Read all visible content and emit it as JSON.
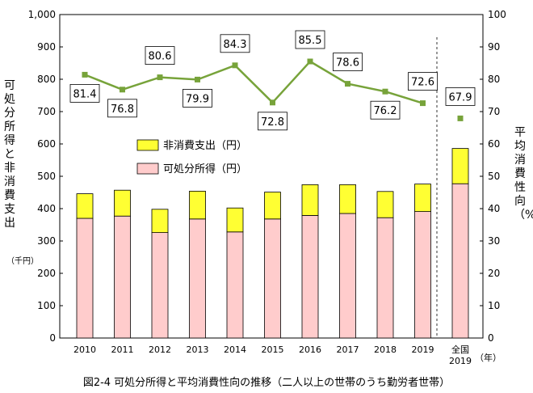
{
  "chart_data": {
    "type": "bar",
    "caption": "図2-4 可処分所得と平均消費性向の推移（二人以上の世帯のうち勤労者世帯）",
    "categories": [
      "2010",
      "2011",
      "2012",
      "2013",
      "2014",
      "2015",
      "2016",
      "2017",
      "2018",
      "2019",
      "全国\n2019"
    ],
    "x_unit": "（年）",
    "left_axis": {
      "label": "可処分所得と非消費支出",
      "unit": "（千円）",
      "range": [
        0,
        1000
      ],
      "ticks": [
        "0",
        "100",
        "200",
        "300",
        "400",
        "500",
        "600",
        "700",
        "800",
        "900",
        "1,000"
      ]
    },
    "right_axis": {
      "label": "平均消費性向（%）",
      "range": [
        0,
        100
      ],
      "ticks": [
        "0",
        "10",
        "20",
        "30",
        "40",
        "50",
        "60",
        "70",
        "80",
        "90",
        "100"
      ]
    },
    "series": [
      {
        "name": "可処分所得（円）",
        "type": "bar-stacked",
        "color": "#ffcccc",
        "values": [
          370,
          377,
          326,
          368,
          328,
          368,
          379,
          385,
          372,
          391,
          477
        ]
      },
      {
        "name": "非消費支出（円）",
        "type": "bar-stacked",
        "color": "#ffff33",
        "values": [
          76,
          80,
          72,
          86,
          74,
          83,
          95,
          89,
          81,
          85,
          109
        ]
      },
      {
        "name": "平均消費性向（%）",
        "type": "line",
        "axis": "right",
        "color": "#77a33a",
        "values": [
          81.4,
          76.8,
          80.6,
          79.9,
          84.3,
          72.8,
          85.5,
          78.6,
          76.2,
          72.6,
          67.9
        ],
        "labels": [
          "81.4",
          "76.8",
          "80.6",
          "79.9",
          "84.3",
          "72.8",
          "85.5",
          "78.6",
          "76.2",
          "72.6",
          "67.9"
        ]
      }
    ],
    "legend": [
      {
        "label": "非消費支出（円）",
        "color": "#ffff33"
      },
      {
        "label": "可処分所得（円）",
        "color": "#ffcccc"
      }
    ],
    "legend_position": "center-left",
    "grid": false
  }
}
